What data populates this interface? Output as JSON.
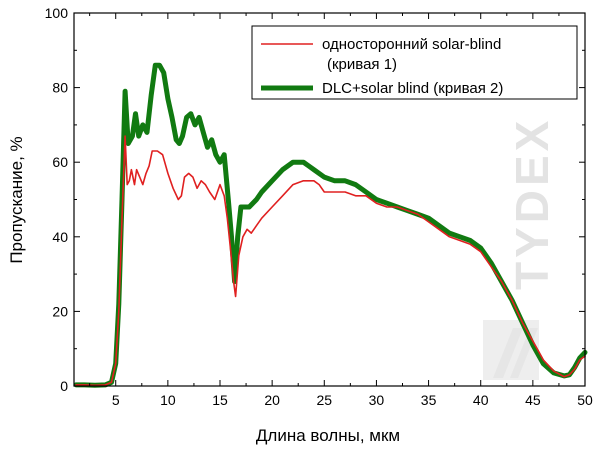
{
  "chart_data": {
    "type": "line",
    "title": "",
    "xlabel": "Длина волны, мкм",
    "ylabel": "Пропускание, %",
    "xlim": [
      1,
      50
    ],
    "ylim": [
      0,
      100
    ],
    "x_ticks": [
      5,
      10,
      15,
      20,
      25,
      30,
      35,
      40,
      45,
      50
    ],
    "y_ticks": [
      0,
      20,
      40,
      60,
      80,
      100
    ],
    "grid": false,
    "legend_position": "top-right",
    "watermark": "TYDEX",
    "series": [
      {
        "name": "односторонний solar-blind\n(кривая 1)",
        "color": "#e02020",
        "points": [
          [
            1.2,
            0.3
          ],
          [
            2,
            0.3
          ],
          [
            3,
            0.2
          ],
          [
            4,
            0.3
          ],
          [
            4.6,
            1
          ],
          [
            5,
            6
          ],
          [
            5.3,
            20
          ],
          [
            5.6,
            45
          ],
          [
            5.9,
            67
          ],
          [
            6.1,
            54
          ],
          [
            6.3,
            55
          ],
          [
            6.5,
            58
          ],
          [
            6.8,
            54
          ],
          [
            7,
            58
          ],
          [
            7.3,
            56
          ],
          [
            7.6,
            54
          ],
          [
            7.9,
            57
          ],
          [
            8.2,
            59
          ],
          [
            8.5,
            63
          ],
          [
            9,
            63
          ],
          [
            9.5,
            62
          ],
          [
            10,
            57
          ],
          [
            10.5,
            53
          ],
          [
            11,
            50
          ],
          [
            11.3,
            51
          ],
          [
            11.6,
            56
          ],
          [
            12,
            57
          ],
          [
            12.4,
            56
          ],
          [
            12.8,
            53
          ],
          [
            13.2,
            55
          ],
          [
            13.6,
            54
          ],
          [
            14,
            52
          ],
          [
            14.5,
            50
          ],
          [
            15,
            54
          ],
          [
            15.4,
            51
          ],
          [
            15.7,
            45
          ],
          [
            16,
            37
          ],
          [
            16.3,
            28
          ],
          [
            16.5,
            24
          ],
          [
            16.8,
            35
          ],
          [
            17.2,
            40
          ],
          [
            17.6,
            42
          ],
          [
            18,
            41
          ],
          [
            18.5,
            43
          ],
          [
            19,
            45
          ],
          [
            20,
            48
          ],
          [
            21,
            51
          ],
          [
            22,
            54
          ],
          [
            23,
            55
          ],
          [
            24,
            55
          ],
          [
            24.5,
            54
          ],
          [
            25,
            52
          ],
          [
            26,
            52
          ],
          [
            27,
            52
          ],
          [
            28,
            51
          ],
          [
            29,
            51
          ],
          [
            30,
            49
          ],
          [
            31,
            48
          ],
          [
            32,
            48
          ],
          [
            33,
            47
          ],
          [
            34,
            46
          ],
          [
            35,
            44
          ],
          [
            36,
            42
          ],
          [
            37,
            40
          ],
          [
            38,
            39
          ],
          [
            39,
            38
          ],
          [
            40,
            36
          ],
          [
            41,
            32
          ],
          [
            42,
            28
          ],
          [
            43,
            23
          ],
          [
            44,
            17
          ],
          [
            45,
            12
          ],
          [
            46,
            7
          ],
          [
            47,
            4
          ],
          [
            48,
            2.5
          ],
          [
            48.5,
            3
          ],
          [
            49,
            4.5
          ],
          [
            49.5,
            7
          ],
          [
            50,
            8
          ]
        ]
      },
      {
        "name": "DLC+solar blind (кривая 2)",
        "color": "#117a11",
        "points": [
          [
            1.2,
            0.3
          ],
          [
            2,
            0.3
          ],
          [
            3,
            0.2
          ],
          [
            4,
            0.3
          ],
          [
            4.6,
            1
          ],
          [
            5,
            6
          ],
          [
            5.3,
            22
          ],
          [
            5.6,
            50
          ],
          [
            5.9,
            79
          ],
          [
            6.2,
            65
          ],
          [
            6.6,
            67
          ],
          [
            6.9,
            73
          ],
          [
            7.2,
            67
          ],
          [
            7.6,
            70
          ],
          [
            8,
            68
          ],
          [
            8.4,
            78
          ],
          [
            8.8,
            86
          ],
          [
            9.2,
            86
          ],
          [
            9.6,
            84
          ],
          [
            10,
            77
          ],
          [
            10.4,
            72
          ],
          [
            10.8,
            66
          ],
          [
            11.1,
            65
          ],
          [
            11.4,
            67
          ],
          [
            11.8,
            72
          ],
          [
            12.2,
            73
          ],
          [
            12.6,
            70
          ],
          [
            13,
            72
          ],
          [
            13.4,
            68
          ],
          [
            13.8,
            64
          ],
          [
            14.2,
            66
          ],
          [
            14.6,
            62
          ],
          [
            15,
            60
          ],
          [
            15.4,
            62
          ],
          [
            15.8,
            50
          ],
          [
            16.1,
            40
          ],
          [
            16.4,
            28
          ],
          [
            16.7,
            40
          ],
          [
            17,
            48
          ],
          [
            17.4,
            48
          ],
          [
            17.8,
            48
          ],
          [
            18.5,
            50
          ],
          [
            19,
            52
          ],
          [
            20,
            55
          ],
          [
            21,
            58
          ],
          [
            22,
            60
          ],
          [
            23,
            60
          ],
          [
            23.5,
            59
          ],
          [
            24,
            58
          ],
          [
            25,
            56
          ],
          [
            26,
            55
          ],
          [
            27,
            55
          ],
          [
            28,
            54
          ],
          [
            29,
            52
          ],
          [
            30,
            50
          ],
          [
            31,
            49
          ],
          [
            32,
            48
          ],
          [
            33,
            47
          ],
          [
            34,
            46
          ],
          [
            35,
            45
          ],
          [
            36,
            43
          ],
          [
            37,
            41
          ],
          [
            38,
            40
          ],
          [
            39,
            39
          ],
          [
            40,
            37
          ],
          [
            41,
            33
          ],
          [
            42,
            28
          ],
          [
            43,
            23
          ],
          [
            44,
            17
          ],
          [
            45,
            11
          ],
          [
            46,
            6
          ],
          [
            47,
            3.5
          ],
          [
            48,
            2.7
          ],
          [
            48.5,
            3
          ],
          [
            49,
            5
          ],
          [
            49.5,
            7.5
          ],
          [
            50,
            9
          ]
        ]
      }
    ]
  }
}
